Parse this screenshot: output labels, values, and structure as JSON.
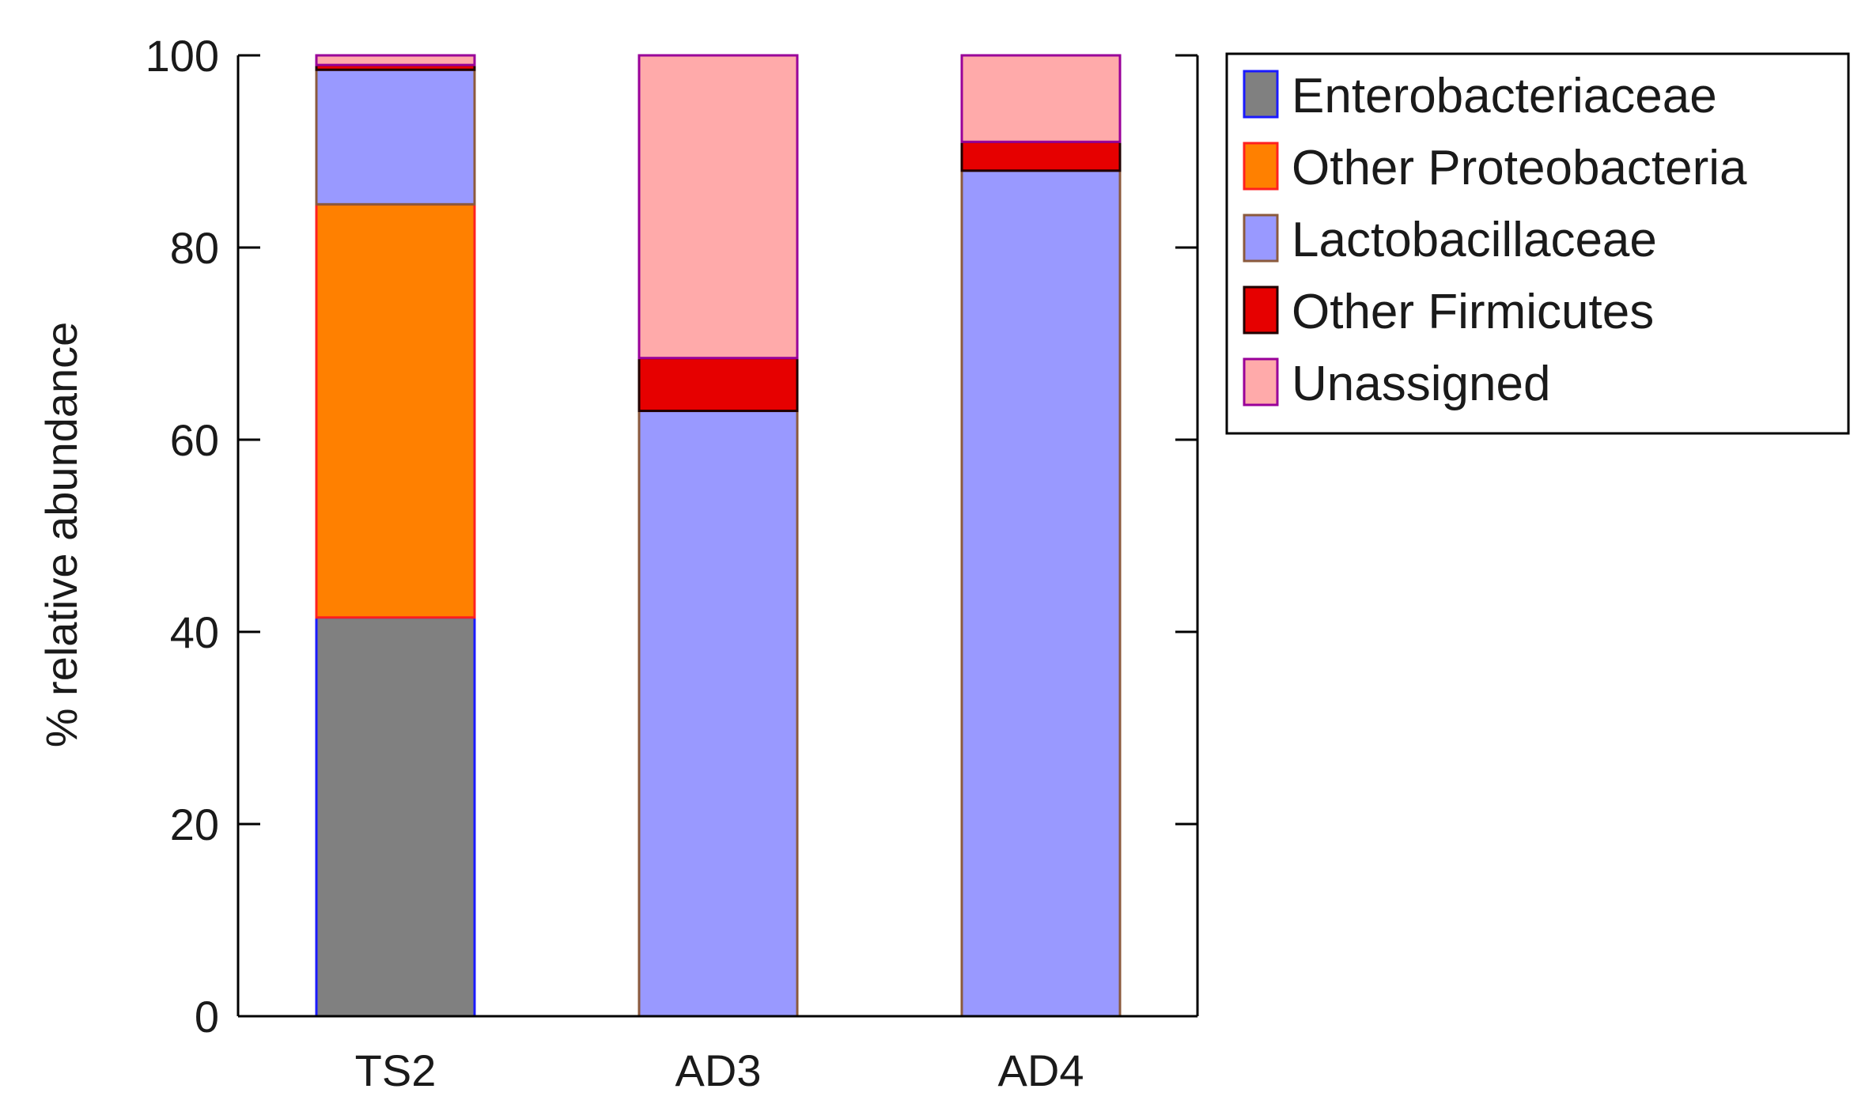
{
  "chart_data": {
    "type": "bar",
    "stacked": true,
    "title": "",
    "xlabel": "",
    "ylabel": "% relative abundance",
    "ylim": [
      0,
      100
    ],
    "yticks": [
      0,
      20,
      40,
      60,
      80,
      100
    ],
    "ytick_labels": [
      "0",
      "20",
      "40",
      "60",
      "80",
      "100"
    ],
    "categories": [
      "TS2",
      "AD3",
      "AD4"
    ],
    "legend_position": "outside-top-right",
    "series": [
      {
        "name": "Enterobacteriaceae",
        "fill": "#808080",
        "edge": "#1a1aff",
        "values": [
          41.5,
          0,
          0
        ]
      },
      {
        "name": "Other Proteobacteria",
        "fill": "#ff8000",
        "edge": "#ff2020",
        "values": [
          43.0,
          0,
          0
        ]
      },
      {
        "name": "Lactobacillaceae",
        "fill": "#9999ff",
        "edge": "#8b5a3c",
        "values": [
          14.0,
          63.0,
          88.0
        ]
      },
      {
        "name": "Other Firmicutes",
        "fill": "#e60000",
        "edge": "#200000",
        "values": [
          0.5,
          5.5,
          3.0
        ]
      },
      {
        "name": "Unassigned",
        "fill": "#ffaaaa",
        "edge": "#990099",
        "values": [
          1.0,
          31.5,
          9.0
        ]
      }
    ]
  }
}
